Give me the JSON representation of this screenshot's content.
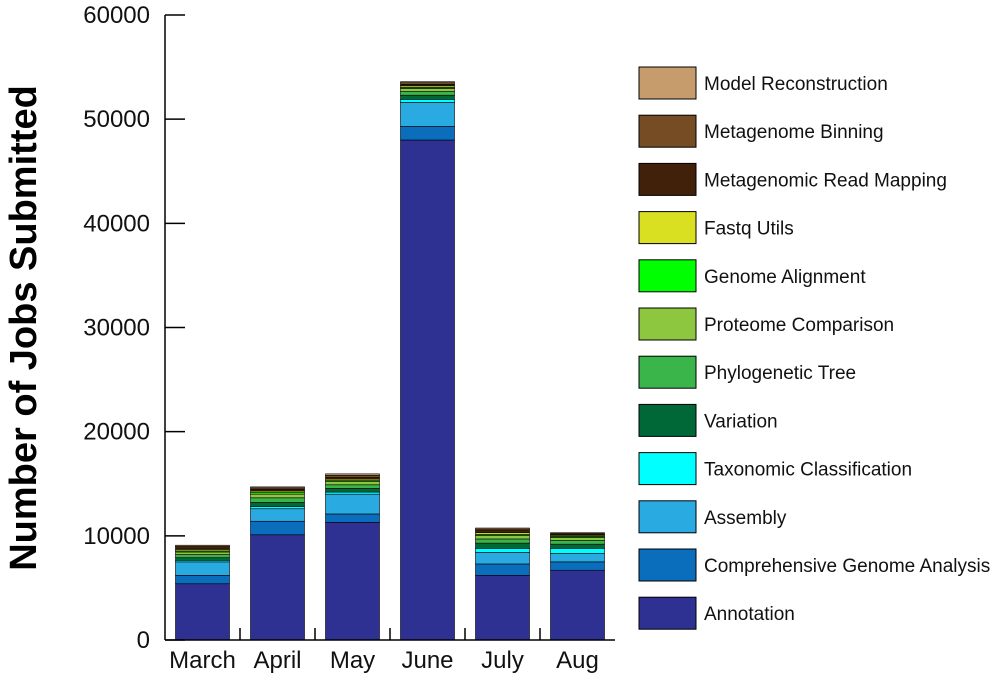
{
  "chart_data": {
    "type": "bar",
    "stacked": true,
    "title": "",
    "xlabel": "",
    "ylabel": "Number of Jobs Submitted",
    "ylim": [
      0,
      60000
    ],
    "yticks": [
      0,
      10000,
      20000,
      30000,
      40000,
      50000,
      60000
    ],
    "grid": false,
    "legend_position": "right",
    "categories": [
      "March",
      "April",
      "May",
      "June",
      "July",
      "Aug"
    ],
    "series": [
      {
        "name": "Annotation",
        "color": "#2E3192",
        "values": [
          5400,
          10100,
          11300,
          48000,
          6200,
          6700
        ]
      },
      {
        "name": "Comprehensive Genome Analysis",
        "color": "#0A6EBD",
        "values": [
          800,
          1300,
          800,
          1300,
          1100,
          800
        ]
      },
      {
        "name": "Assembly",
        "color": "#29ABE2",
        "values": [
          1300,
          1200,
          1900,
          2300,
          1100,
          800
        ]
      },
      {
        "name": "Taxonomic Classification",
        "color": "#00FFFF",
        "values": [
          150,
          200,
          200,
          300,
          400,
          500
        ]
      },
      {
        "name": "Variation",
        "color": "#006837",
        "values": [
          250,
          400,
          350,
          400,
          500,
          400
        ]
      },
      {
        "name": "Phylogenetic Tree",
        "color": "#39B54A",
        "values": [
          300,
          450,
          350,
          350,
          400,
          350
        ]
      },
      {
        "name": "Proteome Comparison",
        "color": "#8DC63F",
        "values": [
          250,
          350,
          300,
          300,
          350,
          300
        ]
      },
      {
        "name": "Genome Alignment",
        "color": "#00FF00",
        "values": [
          100,
          150,
          100,
          100,
          100,
          100
        ]
      },
      {
        "name": "Fastq Utils",
        "color": "#D9E021",
        "values": [
          150,
          150,
          150,
          150,
          150,
          100
        ]
      },
      {
        "name": "Metagenomic Read Mapping",
        "color": "#42210B",
        "values": [
          150,
          150,
          150,
          150,
          200,
          100
        ]
      },
      {
        "name": "Metagenome Binning",
        "color": "#754C24",
        "values": [
          150,
          150,
          200,
          150,
          150,
          100
        ]
      },
      {
        "name": "Model Reconstruction",
        "color": "#C69C6D",
        "values": [
          100,
          100,
          150,
          100,
          100,
          50
        ]
      }
    ]
  }
}
